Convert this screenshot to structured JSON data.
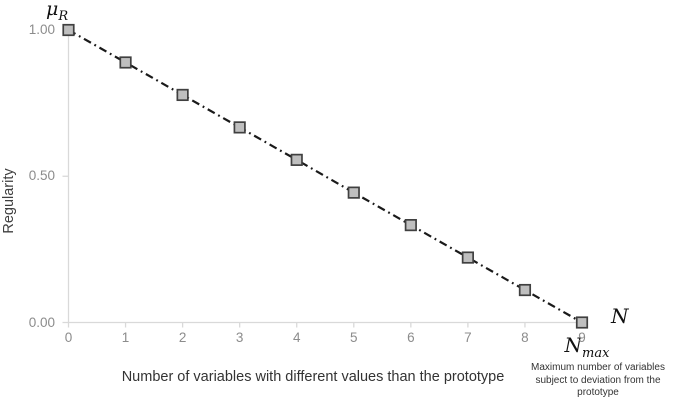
{
  "chart_data": {
    "type": "line",
    "title": "",
    "x": [
      0,
      1,
      2,
      3,
      4,
      5,
      6,
      7,
      8,
      9
    ],
    "y": [
      1.0,
      0.889,
      0.778,
      0.667,
      0.556,
      0.444,
      0.333,
      0.222,
      0.111,
      0.0
    ],
    "x_tick_labels": [
      "0",
      "1",
      "2",
      "3",
      "4",
      "5",
      "6",
      "7",
      "8",
      "9"
    ],
    "y_ticks": [
      {
        "value": 0.0,
        "label": "0.00"
      },
      {
        "value": 0.5,
        "label": "0.50"
      },
      {
        "value": 1.0,
        "label": "1.00"
      }
    ],
    "xlim": [
      0,
      9
    ],
    "ylim": [
      0,
      1
    ],
    "xlabel": "Number of variables with different values than the prototype",
    "ylabel": "Regularity",
    "grid": false,
    "legend": false,
    "line_style": "dash-dot",
    "marker": "square",
    "colors": {
      "line": "#1a1a1a",
      "marker_fill": "#bfbfbf",
      "marker_border": "#404040",
      "axis": "#d9d9d9",
      "tick_label": "#8c8c8c",
      "axis_title": "#3f3f3f"
    }
  },
  "annotations": {
    "y_axis_symbol": "μ",
    "y_axis_symbol_sub": "R",
    "x_axis_symbol": "N",
    "x_max_symbol": "N",
    "x_max_symbol_sub": "max",
    "x_max_note_line1": "Maximum number of variables",
    "x_max_note_line2": "subject to deviation from the",
    "x_max_note_line3": "prototype"
  }
}
